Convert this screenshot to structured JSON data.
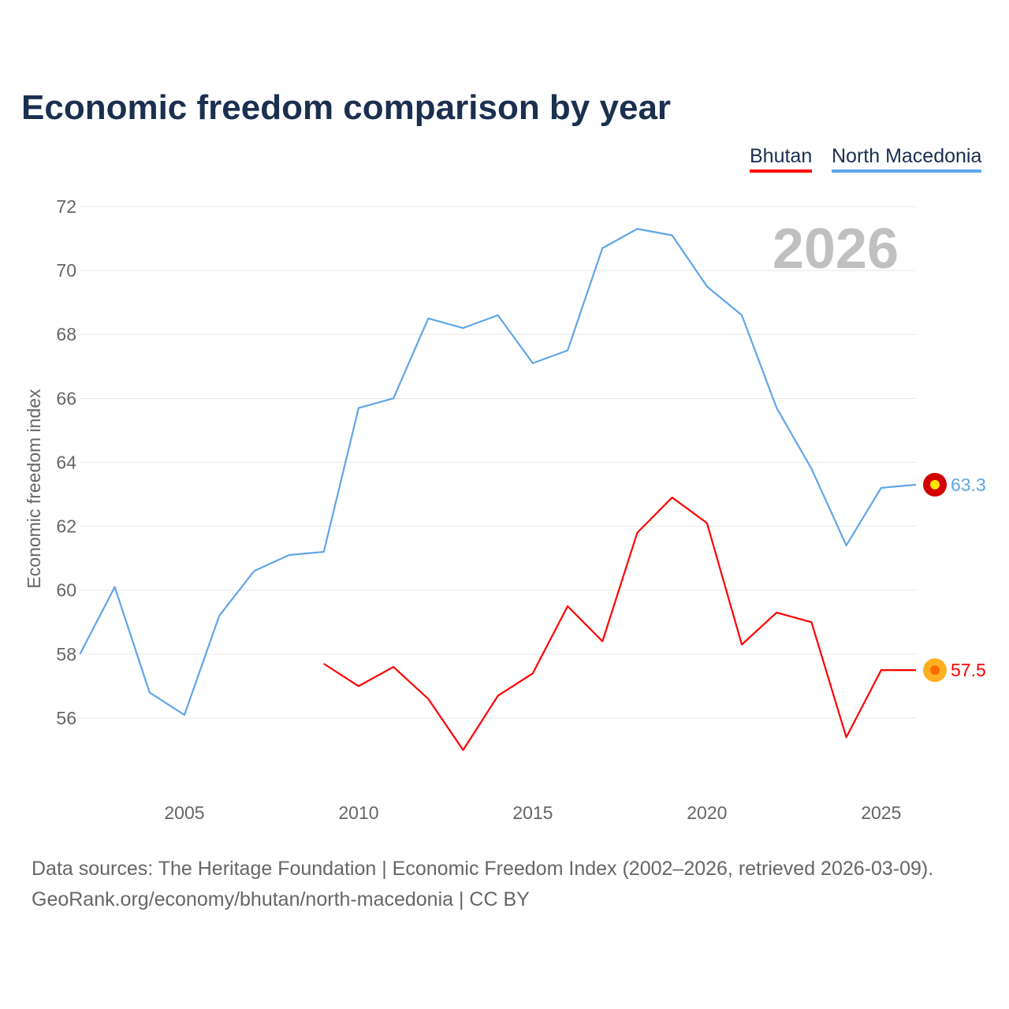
{
  "chart_data": {
    "type": "line",
    "title": "Economic freedom comparison by year",
    "ylabel": "Economic freedom index",
    "xlabel": "",
    "xlim": [
      2002,
      2026
    ],
    "ylim": [
      53.8,
      72.5
    ],
    "yticks": [
      56,
      58,
      60,
      62,
      64,
      66,
      68,
      70,
      72
    ],
    "xticks": [
      2005,
      2010,
      2015,
      2020,
      2025
    ],
    "grid": true,
    "legend_position": "top-right",
    "year_label": "2026",
    "series": [
      {
        "name": "Bhutan",
        "color": "#ff0000",
        "end_label": "57.5",
        "x": [
          2009,
          2010,
          2011,
          2012,
          2013,
          2014,
          2015,
          2016,
          2017,
          2018,
          2019,
          2020,
          2021,
          2022,
          2023,
          2024,
          2025,
          2026
        ],
        "values": [
          57.7,
          57.0,
          57.6,
          56.6,
          55.0,
          56.7,
          57.4,
          59.5,
          58.4,
          61.8,
          62.9,
          62.1,
          58.3,
          59.3,
          59.0,
          55.4,
          57.5,
          57.5
        ]
      },
      {
        "name": "North Macedonia",
        "color": "#5fa6e8",
        "end_label": "63.3",
        "x": [
          2002,
          2003,
          2004,
          2005,
          2006,
          2007,
          2008,
          2009,
          2010,
          2011,
          2012,
          2013,
          2014,
          2015,
          2016,
          2017,
          2018,
          2019,
          2020,
          2021,
          2022,
          2023,
          2024,
          2025,
          2026
        ],
        "values": [
          58.0,
          60.1,
          56.8,
          56.1,
          59.2,
          60.6,
          61.1,
          61.2,
          65.7,
          66.0,
          68.5,
          68.2,
          68.6,
          67.1,
          67.5,
          70.7,
          71.3,
          71.1,
          69.5,
          68.6,
          65.7,
          63.8,
          61.4,
          63.2,
          63.3
        ]
      }
    ]
  },
  "footer": {
    "line1": "Data sources: The Heritage Foundation | Economic Freedom Index (2002–2026, retrieved 2026-03-09).",
    "line2": "GeoRank.org/economy/bhutan/north-macedonia | CC BY"
  }
}
